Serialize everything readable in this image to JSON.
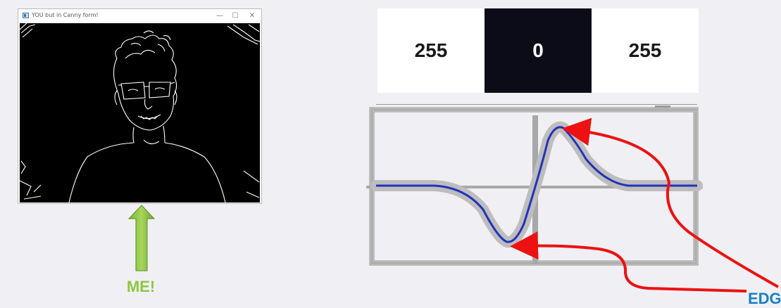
{
  "window": {
    "title": "YOU but in Canny form!",
    "controls": {
      "minimize": "—",
      "maximize": "☐",
      "close": "✕"
    }
  },
  "me_label": "ME!",
  "pixel_row": {
    "cells": [
      {
        "value": "255",
        "shade": "white"
      },
      {
        "value": "0",
        "shade": "black"
      },
      {
        "value": "255",
        "shade": "white"
      }
    ]
  },
  "edge_label": "EDG",
  "colors": {
    "background": "#f0f0f4",
    "arrow_green": "#8cc63f",
    "signal_blue": "#2233bb",
    "annotation_red": "#ee1111",
    "edge_label_blue": "#1a7fc4"
  },
  "icons": {
    "arrow": "up-arrow-icon",
    "app": "app-window-icon"
  }
}
